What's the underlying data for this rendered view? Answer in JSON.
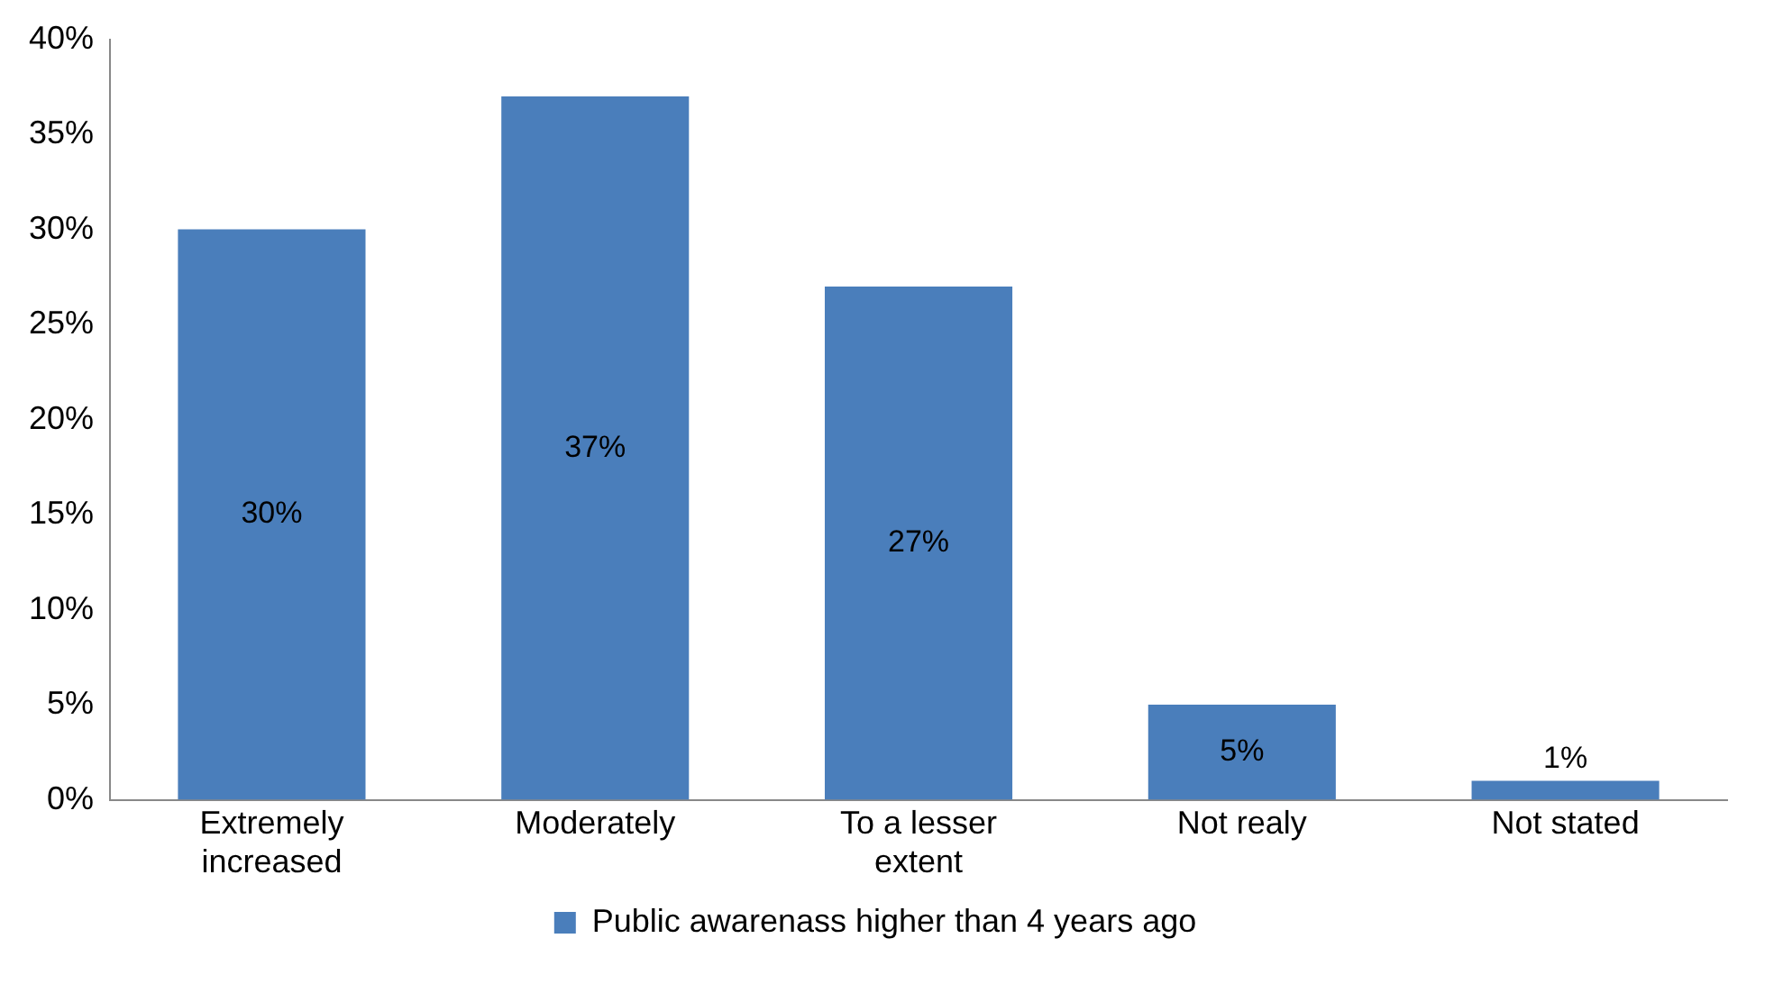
{
  "chart_data": {
    "type": "bar",
    "categories": [
      "Extremely increased",
      "Moderately",
      "To a lesser extent",
      "Not realy",
      "Not stated"
    ],
    "series": [
      {
        "name": "Public awarenass higher than 4 years ago",
        "color": "#4a7ebb",
        "values": [
          30,
          37,
          27,
          5,
          1
        ],
        "value_labels": [
          "30%",
          "37%",
          "27%",
          "5%",
          "1%"
        ]
      }
    ],
    "ylim": [
      0,
      40
    ],
    "yticks": [
      {
        "value": 0,
        "label": "0%"
      },
      {
        "value": 5,
        "label": "5%"
      },
      {
        "value": 10,
        "label": "10%"
      },
      {
        "value": 15,
        "label": "15%"
      },
      {
        "value": 20,
        "label": "20%"
      },
      {
        "value": 25,
        "label": "25%"
      },
      {
        "value": 30,
        "label": "30%"
      },
      {
        "value": 35,
        "label": "35%"
      },
      {
        "value": 40,
        "label": "40%"
      }
    ],
    "grid": false,
    "legend": "bottom"
  }
}
